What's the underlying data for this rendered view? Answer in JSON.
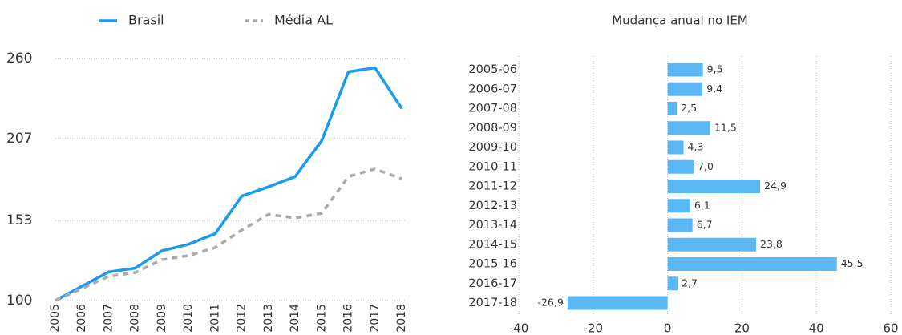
{
  "chart_data": [
    {
      "type": "line",
      "categories": [
        "2005",
        "2006",
        "2007",
        "2008",
        "2009",
        "2010",
        "2011",
        "2012",
        "2013",
        "2014",
        "2015",
        "2016",
        "2017",
        "2018"
      ],
      "series": [
        {
          "name": "Brasil",
          "color": "#1a9bef",
          "dash": false,
          "values": [
            100,
            109.5,
            118.9,
            121.4,
            132.9,
            137.2,
            144.2,
            169.1,
            175.2,
            181.9,
            205.7,
            251.2,
            253.9,
            227.0
          ]
        },
        {
          "name": "Média AL",
          "color": "#aaaaaa",
          "dash": true,
          "values": [
            100,
            108,
            116,
            118.5,
            127,
            129.7,
            135,
            146.6,
            157,
            154.6,
            157.7,
            182,
            187,
            180.5
          ]
        }
      ],
      "ylim": [
        100,
        260
      ],
      "yticks": [
        100,
        153,
        207,
        260
      ],
      "grid": true
    },
    {
      "type": "hbar",
      "title": "Mudança anual no IEM",
      "categories": [
        "2005-06",
        "2006-07",
        "2007-08",
        "2008-09",
        "2009-10",
        "2010-11",
        "2011-12",
        "2012-13",
        "2013-14",
        "2014-15",
        "2015-16",
        "2016-17",
        "2017-18"
      ],
      "values": [
        9.5,
        9.4,
        2.5,
        11.5,
        4.3,
        7.0,
        24.9,
        6.1,
        6.7,
        23.8,
        45.5,
        2.7,
        -26.9
      ],
      "value_labels": [
        "9,5",
        "9,4",
        "2,5",
        "11,5",
        "4,3",
        "7,0",
        "24,9",
        "6,1",
        "6,7",
        "23,8",
        "45,5",
        "2,7",
        "-26,9"
      ],
      "color": "#5bb8f5",
      "xlim": [
        -40,
        60
      ],
      "xticks": [
        -40,
        -20,
        0,
        20,
        40,
        60
      ],
      "grid": true
    }
  ]
}
